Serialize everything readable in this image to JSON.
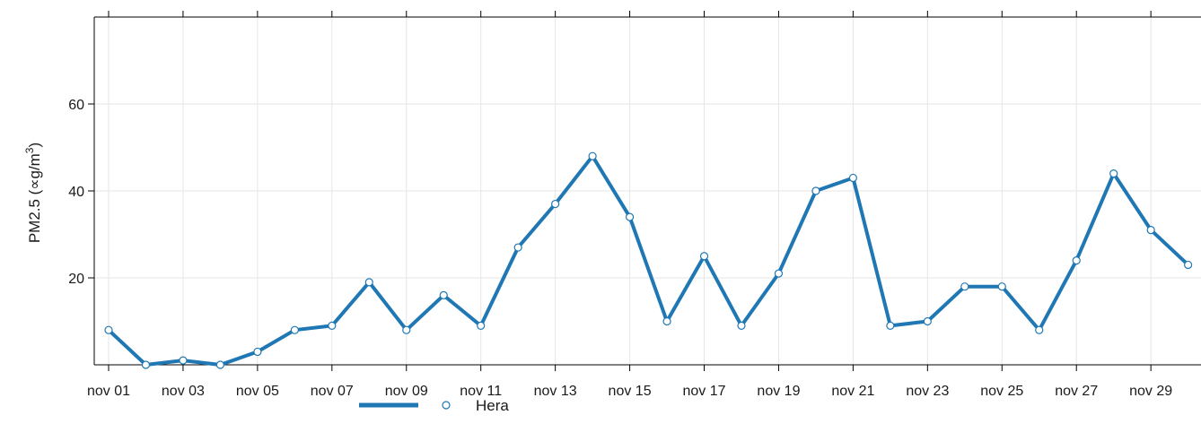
{
  "chart_data": {
    "type": "line",
    "title": "",
    "xlabel": "",
    "ylabel": "PM2.5 (∝g/m³)",
    "ylabel_parts": {
      "main": "PM2.5 (∝g/m",
      "superscript": "3",
      "close": ")"
    },
    "x": [
      "2023-11-01",
      "2023-11-02",
      "2023-11-03",
      "2023-11-04",
      "2023-11-05",
      "2023-11-06",
      "2023-11-07",
      "2023-11-08",
      "2023-11-09",
      "2023-11-10",
      "2023-11-11",
      "2023-11-12",
      "2023-11-13",
      "2023-11-14",
      "2023-11-15",
      "2023-11-16",
      "2023-11-17",
      "2023-11-18",
      "2023-11-19",
      "2023-11-20",
      "2023-11-21",
      "2023-11-22",
      "2023-11-23",
      "2023-11-24",
      "2023-11-25",
      "2023-11-26",
      "2023-11-27",
      "2023-11-28",
      "2023-11-29",
      "2023-11-30"
    ],
    "x_tick_labels": [
      "nov 01",
      "nov 03",
      "nov 05",
      "nov 07",
      "nov 09",
      "nov 11",
      "nov 13",
      "nov 15",
      "nov 17",
      "nov 19",
      "nov 21",
      "nov 23",
      "nov 25",
      "nov 27",
      "nov 29"
    ],
    "y_tick_labels": [
      "20",
      "40",
      "60"
    ],
    "ylim": [
      0,
      80
    ],
    "grid": true,
    "legend_position": "bottom",
    "series": [
      {
        "name": "Hera",
        "color": "#1f77b4",
        "values": [
          8,
          0,
          1,
          0,
          3,
          8,
          9,
          19,
          8,
          16,
          9,
          27,
          37,
          48,
          34,
          10,
          25,
          9,
          21,
          40,
          43,
          9,
          10,
          18,
          18,
          8,
          24,
          44,
          31,
          23
        ]
      }
    ]
  }
}
